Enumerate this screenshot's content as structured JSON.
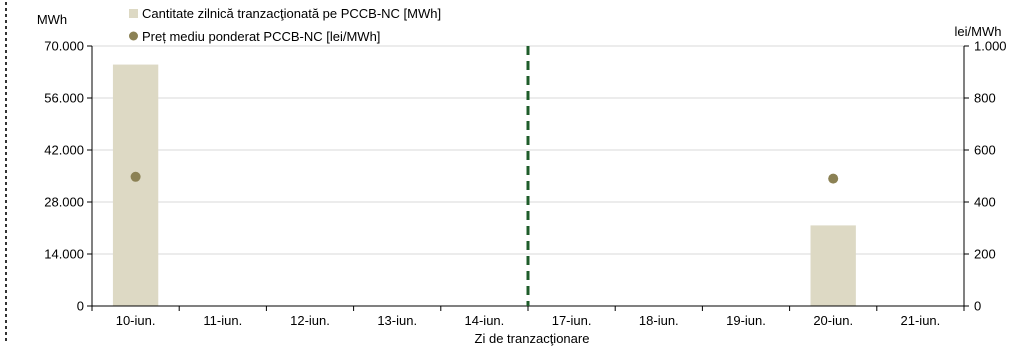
{
  "chart_data": {
    "type": "bar",
    "xlabel": "Zi de tranzacţionare",
    "categories": [
      "10-iun.",
      "11-iun.",
      "12-iun.",
      "13-iun.",
      "14-iun.",
      "17-iun.",
      "18-iun.",
      "19-iun.",
      "20-iun.",
      "21-iun."
    ],
    "left_axis": {
      "unit": "MWh",
      "ylim": [
        0,
        70000
      ],
      "ticks": [
        "0",
        "14.000",
        "28.000",
        "42.000",
        "56.000",
        "70.000"
      ],
      "tick_values": [
        0,
        14000,
        28000,
        42000,
        56000,
        70000
      ]
    },
    "right_axis": {
      "unit": "lei/MWh",
      "ylim": [
        0,
        1000
      ],
      "ticks": [
        "0",
        "200",
        "400",
        "600",
        "800",
        "1.000"
      ],
      "tick_values": [
        0,
        200,
        400,
        600,
        800,
        1000
      ]
    },
    "series": [
      {
        "name": "Cantitate zilnică tranzacţionată pe PCCB-NC [MWh]",
        "type": "bar",
        "axis": "left",
        "color": "#ddd9c4",
        "values": [
          65000,
          null,
          null,
          null,
          null,
          null,
          null,
          null,
          21700,
          null
        ]
      },
      {
        "name": "Preț mediu ponderat PCCB-NC [lei/MWh]",
        "type": "scatter",
        "axis": "right",
        "color": "#8b8154",
        "values": [
          497,
          null,
          null,
          null,
          null,
          null,
          null,
          null,
          490,
          null
        ]
      }
    ],
    "separator_color": "#1e5c2a",
    "grid": true,
    "legend_position": "top-left"
  }
}
